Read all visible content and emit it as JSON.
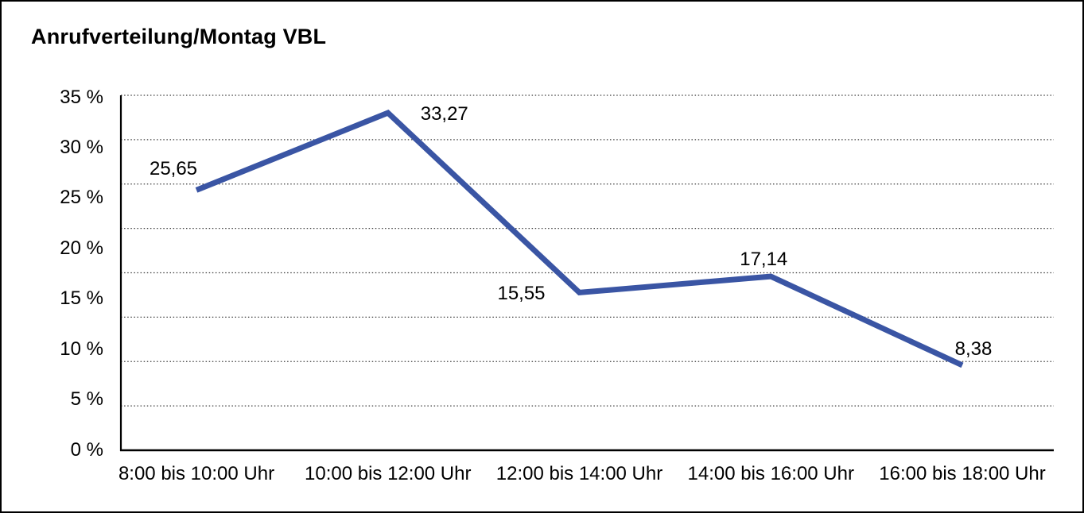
{
  "window": {
    "background_color": "#ffffff",
    "border_color": "#000000"
  },
  "chart_data": {
    "type": "line",
    "title": "Anrufverteilung/Montag VBL",
    "categories": [
      "8:00 bis 10:00 Uhr",
      "10:00 bis 12:00 Uhr",
      "12:00 bis 14:00 Uhr",
      "14:00 bis 16:00 Uhr",
      "16:00 bis 18:00 Uhr"
    ],
    "values": [
      25.65,
      33.27,
      15.55,
      17.14,
      8.38
    ],
    "point_labels": [
      "25,65",
      "33,27",
      "15,55",
      "17,14",
      "8,38"
    ],
    "y_tick_labels": [
      "35 %",
      "30 %",
      "25 %",
      "20 %",
      "15 %",
      "10 %",
      "5 %",
      "0 %"
    ],
    "ylim": [
      0,
      35
    ],
    "xlabel": "",
    "ylabel": "",
    "legend": "none",
    "grid": "horizontal-dotted",
    "gridline_intervals": 8,
    "line_color": "#3A55A4",
    "axis_color": "#000000",
    "gridline_color": "#3c3c3c",
    "text_color": "#000000"
  }
}
